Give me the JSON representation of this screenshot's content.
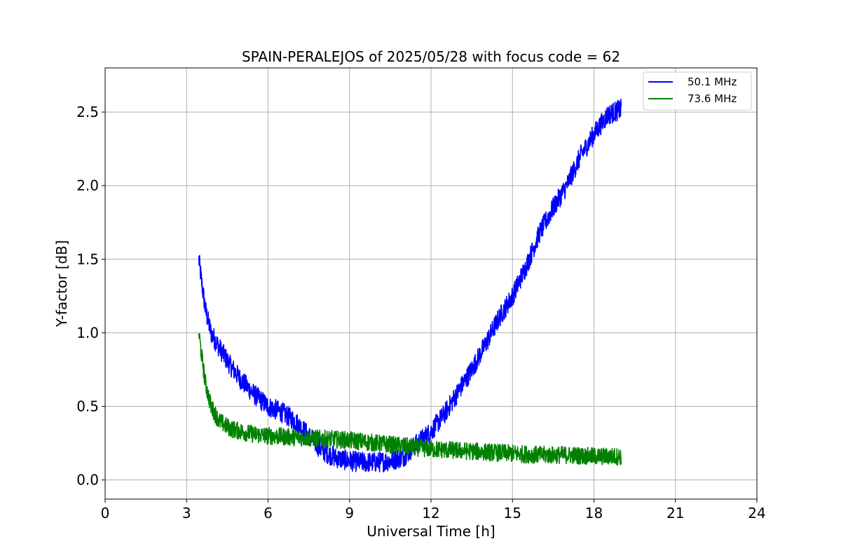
{
  "chart_data": {
    "type": "line",
    "title": "SPAIN-PERALEJOS of 2025/05/28 with focus code = 62",
    "xlabel": "Universal Time [h]",
    "ylabel": "Y-factor [dB]",
    "xlim": [
      0,
      24
    ],
    "ylim": [
      -0.13,
      2.8
    ],
    "xticks": [
      0,
      3,
      6,
      9,
      12,
      15,
      18,
      21,
      24
    ],
    "xtick_labels": [
      "0",
      "3",
      "6",
      "9",
      "12",
      "15",
      "18",
      "21",
      "24"
    ],
    "yticks": [
      0.0,
      0.5,
      1.0,
      1.5,
      2.0,
      2.5
    ],
    "ytick_labels": [
      "0.0",
      "0.5",
      "1.0",
      "1.5",
      "2.0",
      "2.5"
    ],
    "grid": true,
    "legend_position": "top-right",
    "series": [
      {
        "name": "50.1 MHz",
        "color": "#0000ff",
        "noise_amplitude": 0.07,
        "x": [
          3.45,
          3.55,
          3.7,
          3.9,
          4.2,
          4.6,
          5.0,
          5.5,
          6.0,
          6.5,
          7.0,
          7.5,
          8.0,
          8.5,
          9.0,
          9.5,
          10.0,
          10.5,
          11.0,
          11.5,
          12.0,
          12.5,
          13.0,
          13.5,
          14.0,
          14.5,
          15.0,
          15.5,
          16.0,
          16.5,
          17.0,
          17.5,
          18.0,
          18.5,
          19.0
        ],
        "y": [
          1.5,
          1.35,
          1.15,
          1.0,
          0.9,
          0.78,
          0.68,
          0.58,
          0.5,
          0.46,
          0.4,
          0.3,
          0.2,
          0.15,
          0.13,
          0.12,
          0.12,
          0.13,
          0.16,
          0.25,
          0.33,
          0.45,
          0.6,
          0.75,
          0.92,
          1.1,
          1.25,
          1.45,
          1.68,
          1.85,
          2.0,
          2.2,
          2.35,
          2.48,
          2.52
        ]
      },
      {
        "name": "73.6 MHz",
        "color": "#008000",
        "noise_amplitude": 0.06,
        "x": [
          3.45,
          3.55,
          3.7,
          3.9,
          4.2,
          4.6,
          5.0,
          5.5,
          6.0,
          7.0,
          8.0,
          9.0,
          10.0,
          11.0,
          12.0,
          13.0,
          14.0,
          15.0,
          16.0,
          17.0,
          18.0,
          19.0
        ],
        "y": [
          1.0,
          0.85,
          0.65,
          0.5,
          0.4,
          0.35,
          0.33,
          0.31,
          0.3,
          0.29,
          0.28,
          0.27,
          0.25,
          0.23,
          0.21,
          0.2,
          0.19,
          0.18,
          0.17,
          0.17,
          0.16,
          0.16
        ]
      }
    ]
  }
}
